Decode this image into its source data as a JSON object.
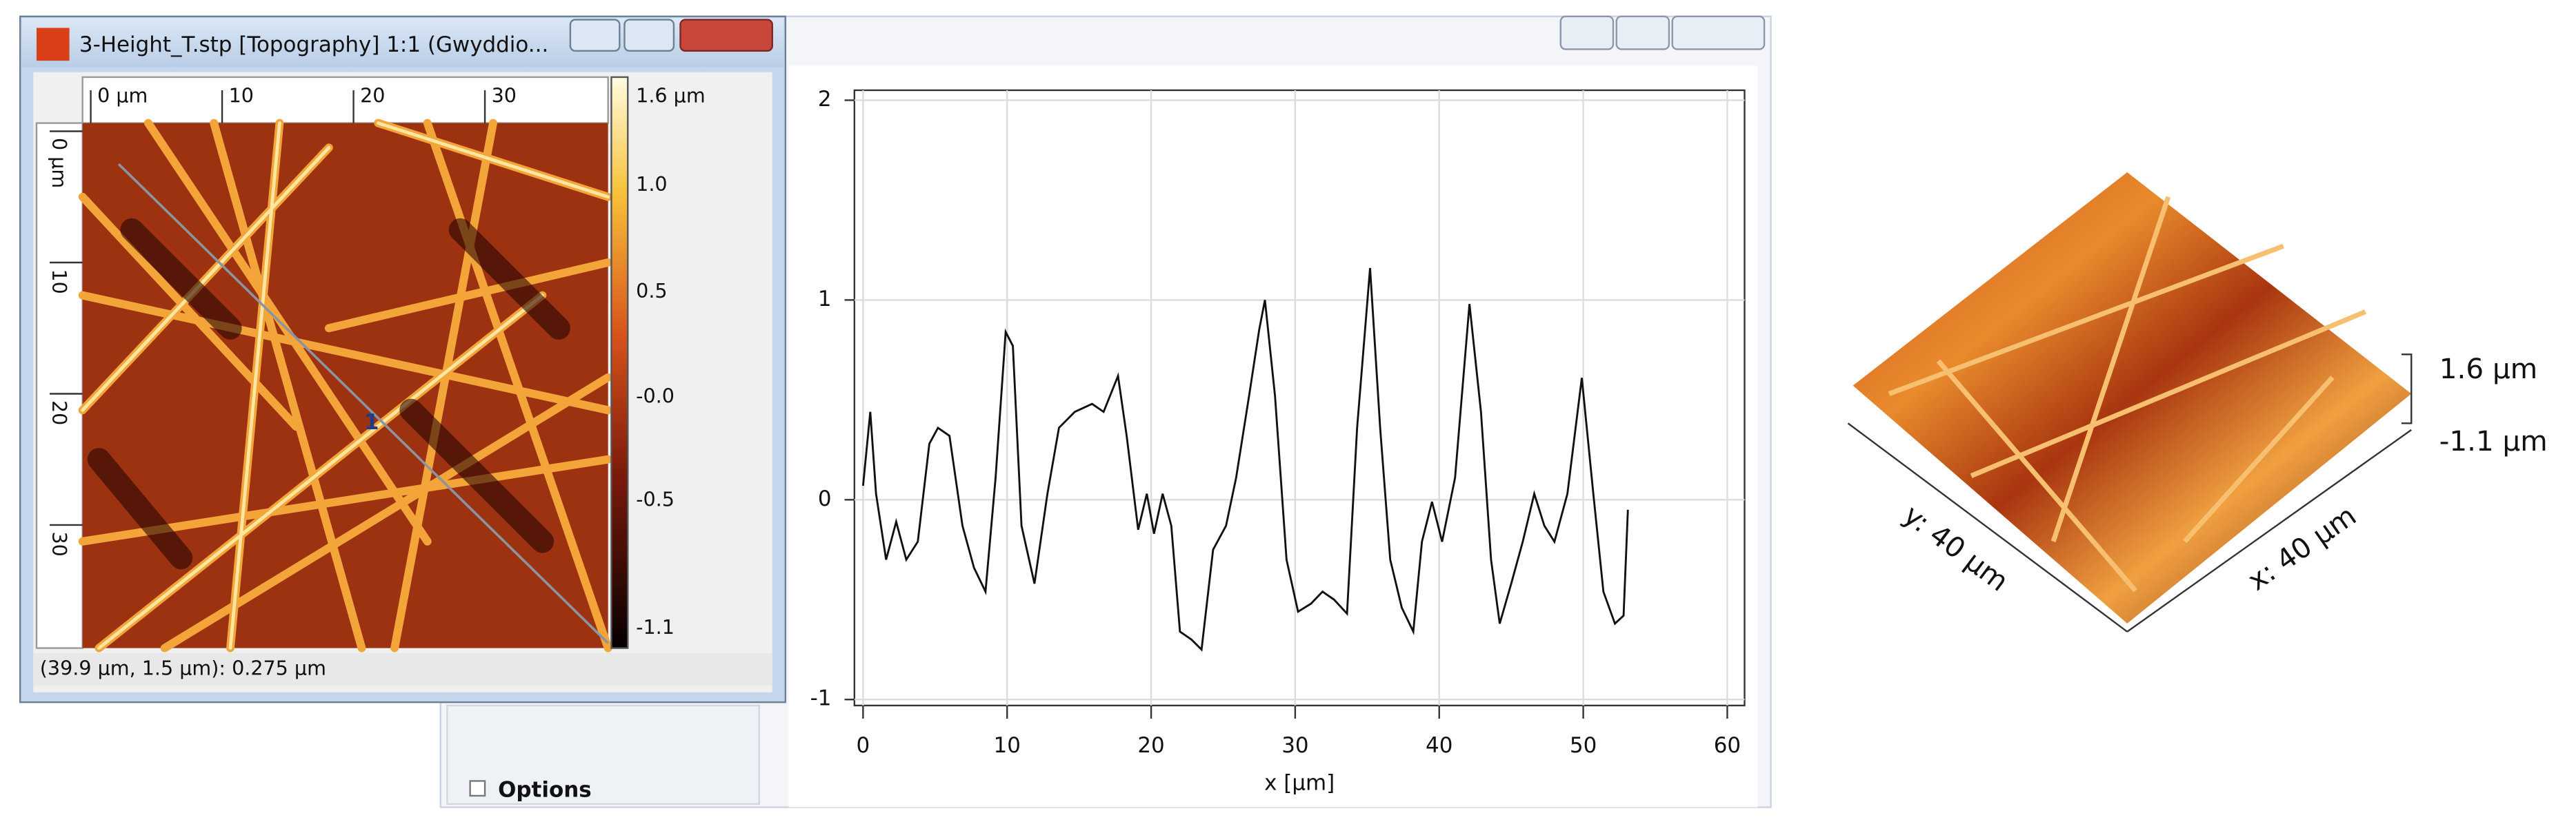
{
  "window": {
    "title": "3-Height_T.stp [Topography] 1:1 (Gwyddio...",
    "top_ruler": [
      "0 µm",
      "10",
      "20",
      "30"
    ],
    "left_ruler": [
      "0 µm",
      "10",
      "20",
      "30"
    ],
    "color_scale": [
      "1.6 µm",
      "1.0",
      "0.5",
      "-0.0",
      "-0.5",
      "-1.1"
    ],
    "status": "(39.9 µm, 1.5 µm): 0.275 µm"
  },
  "side_panel": {
    "options": "Options"
  },
  "chart_data": {
    "type": "line",
    "x_label": "x [µm]",
    "x": [
      0,
      0.5,
      0.9,
      1.6,
      2.3,
      3.0,
      3.8,
      4.6,
      5.2,
      6.0,
      6.9,
      7.7,
      8.5,
      9.2,
      9.9,
      10.4,
      11.0,
      11.9,
      12.8,
      13.6,
      14.7,
      15.9,
      16.7,
      17.7,
      18.3,
      19.1,
      19.7,
      20.2,
      20.8,
      21.4,
      22.0,
      22.8,
      23.5,
      24.3,
      25.2,
      25.9,
      26.8,
      27.5,
      27.9,
      28.6,
      29.4,
      30.2,
      31.1,
      31.9,
      32.7,
      33.6,
      34.3,
      35.2,
      35.9,
      36.6,
      37.4,
      38.2,
      38.8,
      39.5,
      40.2,
      41.1,
      42.1,
      42.9,
      43.6,
      44.2,
      45.0,
      45.8,
      46.6,
      47.3,
      48.0,
      48.9,
      49.9,
      50.7,
      51.4,
      52.2,
      52.8,
      53.1
    ],
    "series": [
      {
        "color": "#111111",
        "values": [
          0.07,
          0.44,
          0.03,
          -0.3,
          -0.11,
          -0.3,
          -0.21,
          0.28,
          0.36,
          0.32,
          -0.13,
          -0.34,
          -0.46,
          0.11,
          0.84,
          0.77,
          -0.13,
          -0.42,
          0.03,
          0.36,
          0.44,
          0.48,
          0.44,
          0.62,
          0.32,
          -0.15,
          0.03,
          -0.17,
          0.03,
          -0.13,
          -0.66,
          -0.7,
          -0.75,
          -0.25,
          -0.13,
          0.11,
          0.52,
          0.85,
          1.0,
          0.52,
          -0.3,
          -0.56,
          -0.52,
          -0.46,
          -0.5,
          -0.57,
          0.36,
          1.16,
          0.36,
          -0.3,
          -0.54,
          -0.66,
          -0.21,
          -0.01,
          -0.21,
          0.11,
          0.98,
          0.44,
          -0.3,
          -0.62,
          -0.42,
          -0.21,
          0.03,
          -0.13,
          -0.21,
          0.03,
          0.61,
          0.03,
          -0.46,
          -0.62,
          -0.58,
          -0.05
        ]
      }
    ],
    "xlim": [
      -0.6,
      61.2
    ],
    "ylim": [
      -1.03,
      2.05
    ],
    "xticks": [
      0,
      10,
      20,
      30,
      40,
      50,
      60
    ],
    "yticks": [
      -1,
      0,
      1,
      2
    ],
    "grid": true
  },
  "view3d": {
    "z_max": "1.6 µm",
    "z_min": "-1.1 µm",
    "y_axis": "y: 40 µm",
    "x_axis": "x: 40 µm"
  }
}
